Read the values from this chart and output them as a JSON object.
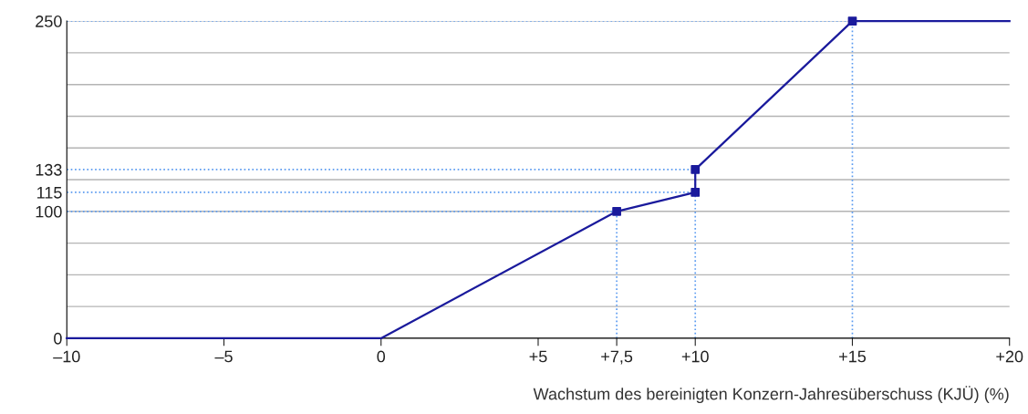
{
  "chart_data": {
    "type": "line",
    "xlabel": "Wachstum des bereinigten Konzern-Jahresüberschuss (KJÜ) (%)",
    "series": [
      {
        "color": "#1a1a9c",
        "marker": "none",
        "x": [
          -10,
          0,
          7.5,
          10,
          10,
          15,
          20
        ],
        "values": [
          0,
          0,
          100,
          115,
          133,
          250,
          250
        ]
      },
      {
        "type": "scatter",
        "color": "#1a1a9c",
        "marker": "square",
        "x": [
          7.5,
          10,
          10,
          15
        ],
        "values": [
          100,
          115,
          133,
          250
        ]
      }
    ],
    "xlim": [
      -10,
      20
    ],
    "ylim": [
      0,
      250
    ],
    "xticks": [
      {
        "value": -10,
        "label": "–10"
      },
      {
        "value": -5,
        "label": "–5"
      },
      0,
      {
        "value": 5,
        "label": "+5"
      },
      {
        "value": 7.5,
        "label": "+7,5"
      },
      {
        "value": 10,
        "label": "+10"
      },
      {
        "value": 15,
        "label": "+15"
      },
      {
        "value": 20,
        "label": "+20"
      }
    ],
    "yticks": [
      0,
      {
        "value": 25,
        "label": null
      },
      {
        "value": 50,
        "label": null
      },
      {
        "value": 75,
        "label": null
      },
      100,
      115,
      133,
      {
        "value": 125,
        "label": null
      },
      {
        "value": 150,
        "label": null
      },
      {
        "value": 175,
        "label": null
      },
      {
        "value": 200,
        "label": null
      },
      {
        "value": 225,
        "label": null
      },
      250
    ],
    "grid": "y",
    "ref_lines": [
      {
        "axis": "y",
        "value": 100,
        "color": "#5b9bf0",
        "line_style": "dotted"
      },
      {
        "axis": "y",
        "value": 115,
        "color": "#5b9bf0",
        "line_style": "dotted"
      },
      {
        "axis": "y",
        "value": 133,
        "color": "#5b9bf0",
        "line_style": "dotted"
      },
      {
        "axis": "y",
        "value": 250,
        "color": "#5b9bf0",
        "line_style": "dotted"
      },
      {
        "axis": "x",
        "value": 7.5,
        "color": "#5b9bf0",
        "line_style": "dotted"
      },
      {
        "axis": "x",
        "value": 10,
        "color": "#5b9bf0",
        "line_style": "dotted"
      },
      {
        "axis": "x",
        "value": 15,
        "color": "#5b9bf0",
        "line_style": "dotted"
      }
    ]
  }
}
